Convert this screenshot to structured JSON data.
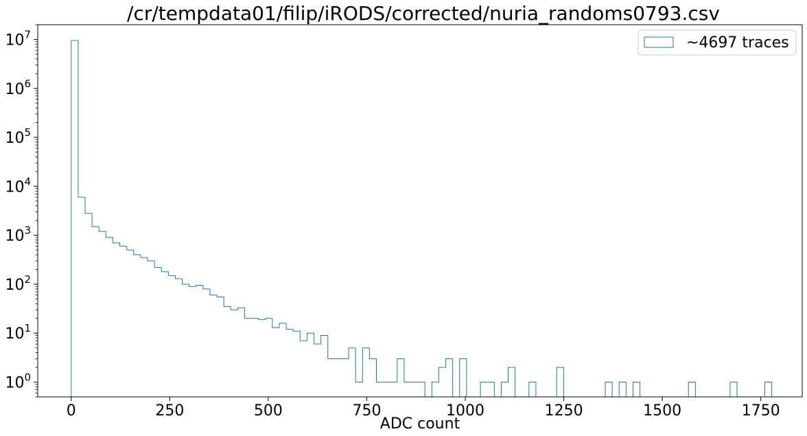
{
  "chart_data": {
    "type": "histogram-step",
    "title": "/cr/tempdata01/filip/iRODS/corrected/nuria_randoms0793.csv",
    "xlabel": "ADC count",
    "ylabel": "",
    "y_scale": "log",
    "xlim": [
      -85,
      1855
    ],
    "ylim": [
      0.5,
      20000000
    ],
    "x_ticks": [
      0,
      250,
      500,
      750,
      1000,
      1250,
      1500,
      1750
    ],
    "x_tick_labels": [
      "0",
      "250",
      "500",
      "750",
      "1000",
      "1250",
      "1500",
      "1750"
    ],
    "y_ticks": [
      1,
      10,
      100,
      1000,
      10000,
      100000,
      1000000,
      10000000
    ],
    "y_tick_labels": [
      {
        "base": "10",
        "exp": "0"
      },
      {
        "base": "10",
        "exp": "1"
      },
      {
        "base": "10",
        "exp": "2"
      },
      {
        "base": "10",
        "exp": "3"
      },
      {
        "base": "10",
        "exp": "4"
      },
      {
        "base": "10",
        "exp": "5"
      },
      {
        "base": "10",
        "exp": "6"
      },
      {
        "base": "10",
        "exp": "7"
      }
    ],
    "grid": false,
    "legend_position": "top-right",
    "color": "#1f77b4",
    "series": [
      {
        "name": "~4697 traces",
        "bin_edges": [
          0,
          17.6,
          35.2,
          52.8,
          70.4,
          88.0,
          105.6,
          123.2,
          140.8,
          158.4,
          176.0,
          193.6,
          211.2,
          228.8,
          246.4,
          264.0,
          281.6,
          299.2,
          316.8,
          334.4,
          352.0,
          369.6,
          387.2,
          404.8,
          422.4,
          440.0,
          457.6,
          475.2,
          492.8,
          510.4,
          528.0,
          545.6,
          563.2,
          580.8,
          598.4,
          616.0,
          633.6,
          651.2,
          668.8,
          686.4,
          704.0,
          721.6,
          739.2,
          756.8,
          774.4,
          792.0,
          809.6,
          827.2,
          844.8,
          862.4,
          880.0,
          897.6,
          915.2,
          932.8,
          950.4,
          968.0,
          985.6,
          1003.2,
          1020.8,
          1038.4,
          1056.0,
          1073.6,
          1091.2,
          1108.8,
          1126.4,
          1144.0,
          1161.6,
          1179.2,
          1196.8,
          1214.4,
          1232.0,
          1249.6,
          1267.2,
          1284.8,
          1302.4,
          1320.0,
          1337.6,
          1355.2,
          1372.8,
          1390.4,
          1408.0,
          1425.6,
          1443.2,
          1460.8,
          1478.4,
          1496.0,
          1513.6,
          1531.2,
          1548.8,
          1566.4,
          1584.0,
          1601.6,
          1619.2,
          1636.8,
          1654.4,
          1672.0,
          1689.6,
          1707.2,
          1724.8,
          1742.4,
          1760.0,
          1777.6
        ],
        "counts": [
          9500000,
          6000,
          2800,
          1500,
          1200,
          900,
          700,
          600,
          500,
          400,
          350,
          300,
          220,
          180,
          150,
          130,
          100,
          90,
          95,
          80,
          60,
          55,
          35,
          30,
          33,
          20,
          20,
          19,
          20,
          13,
          16,
          12,
          11,
          7,
          10,
          6,
          9,
          3,
          3,
          3,
          5,
          1,
          5,
          3,
          1,
          1,
          1,
          3,
          1,
          1,
          1,
          0,
          1,
          2,
          3,
          0,
          3,
          0,
          0,
          1,
          1,
          0,
          1,
          2,
          0,
          0,
          1,
          0,
          0,
          0,
          2,
          0,
          0,
          0,
          0,
          0,
          0,
          1,
          0,
          1,
          0,
          1,
          0,
          0,
          0,
          0,
          0,
          0,
          0,
          1,
          0,
          0,
          0,
          0,
          0,
          1,
          0,
          0,
          0,
          0,
          1
        ]
      }
    ]
  }
}
